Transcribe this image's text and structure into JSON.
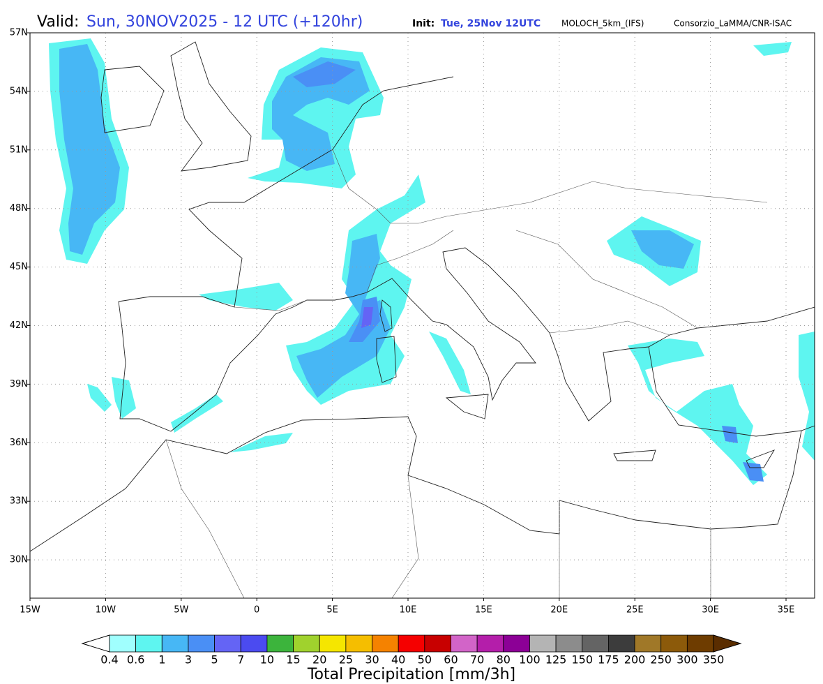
{
  "header": {
    "valid_label": "Valid:",
    "valid_time": "Sun, 30NOV2025 - 12 UTC (+120hr)",
    "init_label": "Init:",
    "init_time": "Tue, 25Nov 12UTC",
    "model": "MOLOCH_5km_(IFS)",
    "source": "Consorzio_LaMMA/CNR-ISAC"
  },
  "map": {
    "lat_labels": [
      "57N",
      "54N",
      "51N",
      "48N",
      "45N",
      "42N",
      "39N",
      "36N",
      "33N",
      "30N"
    ],
    "lon_labels": [
      "15W",
      "10W",
      "5W",
      "0",
      "5E",
      "10E",
      "15E",
      "20E",
      "25E",
      "30E",
      "35E"
    ]
  },
  "colorbar": {
    "title": "Total Precipitation [mm/3h]",
    "levels": [
      "0.4",
      "0.6",
      "1",
      "3",
      "5",
      "7",
      "10",
      "15",
      "20",
      "25",
      "30",
      "40",
      "50",
      "60",
      "70",
      "80",
      "100",
      "125",
      "150",
      "175",
      "200",
      "250",
      "300",
      "350"
    ],
    "colors": [
      "#ffffff",
      "#a0fffe",
      "#5ef5f0",
      "#47b7f5",
      "#4a8ff5",
      "#6464f5",
      "#4b4bf0",
      "#3cb43c",
      "#a0d22d",
      "#f5e600",
      "#f5be00",
      "#f58200",
      "#f50000",
      "#c80000",
      "#d264c8",
      "#b41eaa",
      "#8c0096",
      "#b4b4b4",
      "#8c8c8c",
      "#646464",
      "#3c3c3c",
      "#a07828",
      "#8c5a0a",
      "#6e3c00",
      "#5a2d00"
    ]
  }
}
